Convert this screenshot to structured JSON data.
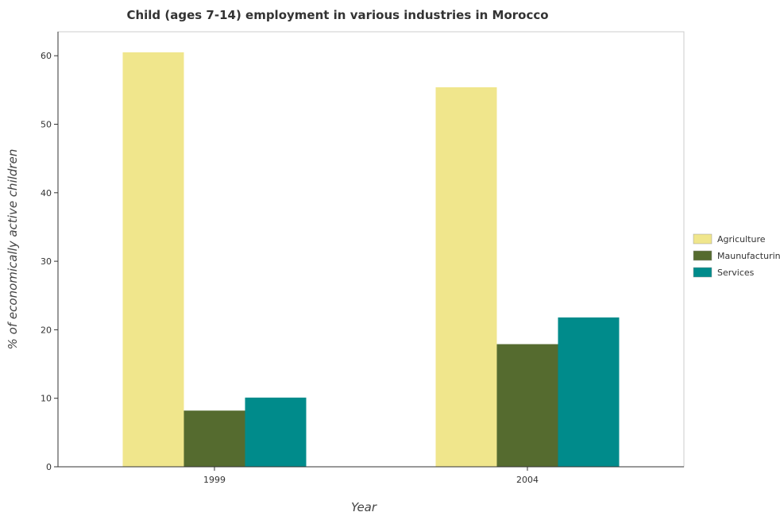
{
  "chart_data": {
    "type": "bar",
    "title": "Child (ages 7-14) employment in various industries in Morocco",
    "xlabel": "Year",
    "ylabel": "% of economically active children",
    "categories": [
      "1999",
      "2004"
    ],
    "series": [
      {
        "name": "Agriculture",
        "values": [
          60.5,
          55.4
        ],
        "color": "#f0e68c"
      },
      {
        "name": "Maunufacturing",
        "values": [
          8.2,
          17.9
        ],
        "color": "#556b2f"
      },
      {
        "name": "Services",
        "values": [
          10.1,
          21.8
        ],
        "color": "#008b8b"
      }
    ],
    "ylim": [
      0,
      63.5
    ],
    "yticks": [
      "0",
      "10",
      "20",
      "30",
      "40",
      "50",
      "60"
    ],
    "grid": false,
    "legend_position": "right"
  }
}
